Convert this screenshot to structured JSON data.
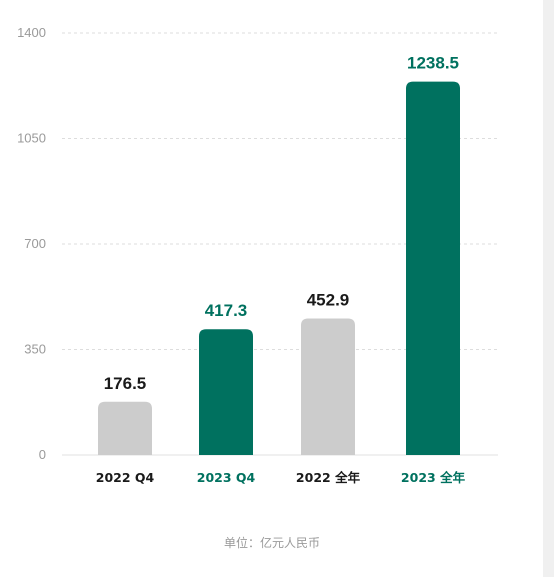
{
  "chart_data": {
    "type": "bar",
    "categories": [
      "2022 Q4",
      "2023 Q4",
      "2022 全年",
      "2023 全年"
    ],
    "values": [
      176.5,
      417.3,
      452.9,
      1238.5
    ],
    "value_labels": [
      "176.5",
      "417.3",
      "452.9",
      "1238.5"
    ],
    "yticks": [
      "0",
      "350",
      "700",
      "1050",
      "1400"
    ],
    "ylim": [
      0,
      1400
    ],
    "grid": true,
    "note": "单位：亿元人民币"
  },
  "colors": {
    "gray_bar": "#cccccc",
    "teal_bar": "#00715f",
    "teal_text": "#00715f",
    "dark_text": "#1a1a1a",
    "grid": "#dddddd",
    "axis": "#e2e2e2"
  },
  "bar_color_keys": [
    "gray_bar",
    "teal_bar",
    "gray_bar",
    "teal_bar"
  ],
  "label_color_keys": [
    "dark_text",
    "teal_text",
    "dark_text",
    "teal_text"
  ]
}
